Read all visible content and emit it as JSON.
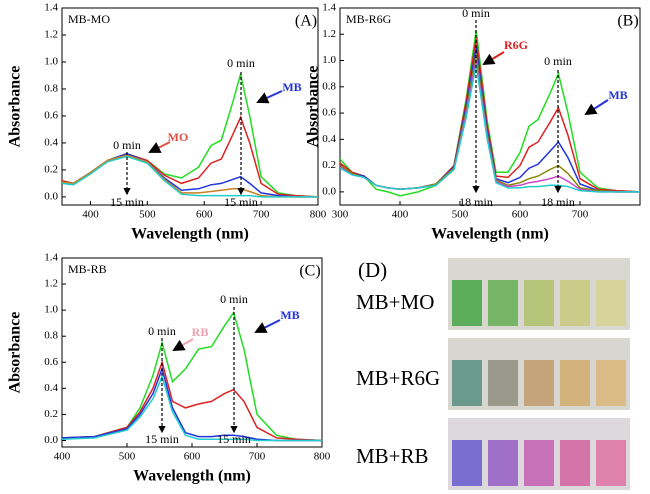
{
  "chart_data": [
    {
      "type": "line",
      "title": "MB-MO",
      "panel_label": "(A)",
      "x_label": "Wavelength (nm)",
      "y_label": "Absorbance",
      "x": [
        350,
        370,
        400,
        430,
        464,
        500,
        530,
        560,
        590,
        612,
        630,
        650,
        664,
        680,
        700,
        730,
        760,
        800
      ],
      "series": [
        {
          "color": "#22dd22",
          "values": [
            0.12,
            0.1,
            0.18,
            0.27,
            0.32,
            0.27,
            0.17,
            0.14,
            0.22,
            0.38,
            0.42,
            0.7,
            0.91,
            0.6,
            0.15,
            0.03,
            0.01,
            0.0
          ]
        },
        {
          "color": "#dd2222",
          "values": [
            0.12,
            0.1,
            0.18,
            0.27,
            0.32,
            0.27,
            0.16,
            0.1,
            0.14,
            0.25,
            0.28,
            0.46,
            0.59,
            0.4,
            0.1,
            0.02,
            0.01,
            0.0
          ]
        },
        {
          "color": "#2233dd",
          "values": [
            0.11,
            0.1,
            0.18,
            0.27,
            0.32,
            0.26,
            0.14,
            0.05,
            0.06,
            0.09,
            0.1,
            0.13,
            0.15,
            0.1,
            0.03,
            0.01,
            0.0,
            0.0
          ]
        },
        {
          "color": "#c8801e",
          "values": [
            0.11,
            0.1,
            0.18,
            0.27,
            0.31,
            0.26,
            0.13,
            0.03,
            0.03,
            0.04,
            0.05,
            0.06,
            0.06,
            0.04,
            0.01,
            0.0,
            0.0,
            0.0
          ]
        },
        {
          "color": "#22cccc",
          "values": [
            0.1,
            0.09,
            0.17,
            0.26,
            0.3,
            0.25,
            0.12,
            0.02,
            0.01,
            0.01,
            0.01,
            0.01,
            0.01,
            0.01,
            0.0,
            0.0,
            0.0,
            0.0
          ]
        }
      ],
      "xlim": [
        350,
        800
      ],
      "xticks": [
        400,
        500,
        600,
        700,
        800
      ],
      "ylim": [
        -0.06,
        1.4
      ],
      "yticks": [
        {
          "value": 0,
          "label": "0.0"
        },
        0.2,
        0.4,
        0.6,
        0.8,
        {
          "value": 1,
          "label": "1.0"
        },
        1.2,
        1.4
      ],
      "annotations": [
        {
          "text": "0 min",
          "color": "#000000"
        },
        {
          "text": "15 min",
          "color": "#000000"
        },
        {
          "text": "MO",
          "color": "#e05040"
        },
        {
          "text": "0 min",
          "color": "#000000"
        },
        {
          "text": "MB",
          "color": "#2233dd"
        },
        {
          "text": "15 min",
          "color": "#000000"
        }
      ]
    },
    {
      "type": "line",
      "title": "MB-R6G",
      "panel_label": "(B)",
      "x_label": "Wavelength (nm)",
      "y_label": "Absorbance",
      "x": [
        300,
        320,
        340,
        360,
        380,
        400,
        430,
        460,
        490,
        510,
        527,
        545,
        560,
        580,
        600,
        615,
        630,
        650,
        664,
        680,
        700,
        730,
        760,
        800
      ],
      "series": [
        {
          "color": "#22dd22",
          "values": [
            0.25,
            0.15,
            0.12,
            0.02,
            0.0,
            -0.03,
            0.0,
            0.05,
            0.2,
            0.7,
            1.23,
            0.55,
            0.15,
            0.15,
            0.3,
            0.5,
            0.55,
            0.75,
            0.9,
            0.6,
            0.15,
            0.03,
            0.01,
            0.0
          ]
        },
        {
          "color": "#dd2222",
          "values": [
            0.22,
            0.15,
            0.12,
            0.05,
            0.03,
            0.02,
            0.03,
            0.06,
            0.2,
            0.68,
            1.17,
            0.52,
            0.12,
            0.11,
            0.2,
            0.34,
            0.38,
            0.53,
            0.64,
            0.43,
            0.1,
            0.02,
            0.01,
            0.0
          ]
        },
        {
          "color": "#2233dd",
          "values": [
            0.2,
            0.14,
            0.12,
            0.05,
            0.03,
            0.02,
            0.03,
            0.06,
            0.19,
            0.64,
            1.1,
            0.48,
            0.1,
            0.07,
            0.11,
            0.18,
            0.21,
            0.31,
            0.38,
            0.26,
            0.06,
            0.01,
            0.0,
            0.0
          ]
        },
        {
          "color": "#888800",
          "values": [
            0.2,
            0.14,
            0.11,
            0.05,
            0.03,
            0.02,
            0.03,
            0.06,
            0.18,
            0.61,
            1.05,
            0.45,
            0.09,
            0.05,
            0.07,
            0.1,
            0.12,
            0.17,
            0.2,
            0.14,
            0.03,
            0.01,
            0.0,
            0.0
          ]
        },
        {
          "color": "#cc44cc",
          "values": [
            0.19,
            0.13,
            0.11,
            0.05,
            0.03,
            0.02,
            0.03,
            0.05,
            0.17,
            0.58,
            1.0,
            0.43,
            0.08,
            0.04,
            0.05,
            0.07,
            0.08,
            0.1,
            0.12,
            0.08,
            0.02,
            0.0,
            0.0,
            0.0
          ]
        },
        {
          "color": "#22cccc",
          "values": [
            0.18,
            0.13,
            0.11,
            0.05,
            0.03,
            0.02,
            0.03,
            0.05,
            0.17,
            0.56,
            0.97,
            0.41,
            0.07,
            0.03,
            0.03,
            0.04,
            0.04,
            0.05,
            0.05,
            0.04,
            0.01,
            0.0,
            0.0,
            0.0
          ]
        }
      ],
      "xlim": [
        300,
        800
      ],
      "xticks": [
        300,
        400,
        500,
        600,
        700
      ],
      "ylim": [
        -0.1,
        1.4
      ],
      "yticks": [
        {
          "value": 0,
          "label": "0.0"
        },
        0.2,
        0.4,
        0.6,
        0.8,
        {
          "value": 1,
          "label": "1.0"
        },
        1.2,
        1.4
      ],
      "annotations": [
        {
          "text": "0 min",
          "color": "#000000"
        },
        {
          "text": "R6G",
          "color": "#dd2222"
        },
        {
          "text": "0 min",
          "color": "#000000"
        },
        {
          "text": "MB",
          "color": "#2233dd"
        },
        {
          "text": "18 min",
          "color": "#000000"
        },
        {
          "text": "18 min",
          "color": "#000000"
        }
      ]
    },
    {
      "type": "line",
      "title": "MB-RB",
      "panel_label": "(C)",
      "x_label": "Wavelength (nm)",
      "y_label": "Absorbance",
      "x": [
        400,
        450,
        500,
        520,
        540,
        554,
        570,
        590,
        610,
        630,
        650,
        664,
        680,
        700,
        730,
        760,
        800
      ],
      "series": [
        {
          "color": "#22dd22",
          "values": [
            0.02,
            0.03,
            0.1,
            0.25,
            0.5,
            0.75,
            0.45,
            0.55,
            0.7,
            0.72,
            0.88,
            0.98,
            0.7,
            0.2,
            0.04,
            0.01,
            0.0
          ]
        },
        {
          "color": "#dd2222",
          "values": [
            0.02,
            0.03,
            0.1,
            0.22,
            0.4,
            0.6,
            0.3,
            0.25,
            0.28,
            0.3,
            0.36,
            0.39,
            0.3,
            0.1,
            0.02,
            0.01,
            0.0
          ]
        },
        {
          "color": "#2233dd",
          "values": [
            0.02,
            0.03,
            0.09,
            0.2,
            0.36,
            0.55,
            0.25,
            0.06,
            0.03,
            0.03,
            0.04,
            0.04,
            0.03,
            0.01,
            0.0,
            0.0,
            0.0
          ]
        },
        {
          "color": "#22cccc",
          "values": [
            0.01,
            0.02,
            0.08,
            0.18,
            0.32,
            0.49,
            0.22,
            0.04,
            0.01,
            0.01,
            0.01,
            0.01,
            0.01,
            0.0,
            0.0,
            0.0,
            0.0
          ]
        }
      ],
      "xlim": [
        400,
        800
      ],
      "xticks": [
        400,
        500,
        600,
        700,
        800
      ],
      "ylim": [
        -0.05,
        1.4
      ],
      "yticks": [
        {
          "value": 0,
          "label": "0.0"
        },
        0.2,
        0.4,
        0.6,
        0.8,
        {
          "value": 1,
          "label": "1.0"
        },
        1.2,
        1.4
      ],
      "annotations": [
        {
          "text": "0 min",
          "color": "#000000"
        },
        {
          "text": "RB",
          "color": "#f0a0b0"
        },
        {
          "text": "0 min",
          "color": "#000000"
        },
        {
          "text": "MB",
          "color": "#2233dd"
        },
        {
          "text": "15 min",
          "color": "#000000"
        },
        {
          "text": "15 min",
          "color": "#000000"
        }
      ]
    }
  ],
  "photo_panel": {
    "label": "(D)",
    "rows": [
      "MB+MO",
      "MB+R6G",
      "MB+RB"
    ]
  }
}
